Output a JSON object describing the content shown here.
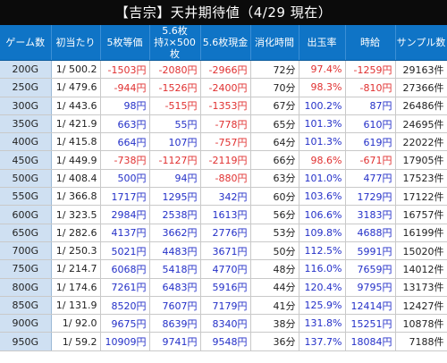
{
  "title": "【吉宗】天井期待値（4/29 現在）",
  "colors": {
    "header_bg": "#0f74c6",
    "game_col_bg": "#cfe0f2",
    "negative": "#e03030",
    "positive": "#2430c8"
  },
  "headers": {
    "game": "ゲーム数",
    "hit": "初当たり",
    "coin5": "5枚等価",
    "coin56_l1": "5.6枚",
    "coin56_l2": "持ｽ×500枚",
    "cash56": "5.6枚現金",
    "time": "消化時間",
    "rate": "出玉率",
    "hourly": "時給",
    "sample": "サンプル数"
  },
  "rows": [
    {
      "game": "200G",
      "hit": "1/ 500.2",
      "coin5": "-1503円",
      "coin56": "-2080円",
      "cash56": "-2966円",
      "time": "72分",
      "rate": "97.4%",
      "hourly": "-1259円",
      "sample": "29163件"
    },
    {
      "game": "250G",
      "hit": "1/ 479.6",
      "coin5": "-944円",
      "coin56": "-1526円",
      "cash56": "-2400円",
      "time": "70分",
      "rate": "98.3%",
      "hourly": "-810円",
      "sample": "27366件"
    },
    {
      "game": "300G",
      "hit": "1/ 443.6",
      "coin5": "98円",
      "coin56": "-515円",
      "cash56": "-1353円",
      "time": "67分",
      "rate": "100.2%",
      "hourly": "87円",
      "sample": "26486件"
    },
    {
      "game": "350G",
      "hit": "1/ 421.9",
      "coin5": "663円",
      "coin56": "55円",
      "cash56": "-778円",
      "time": "65分",
      "rate": "101.3%",
      "hourly": "610円",
      "sample": "24695件"
    },
    {
      "game": "400G",
      "hit": "1/ 415.8",
      "coin5": "664円",
      "coin56": "107円",
      "cash56": "-757円",
      "time": "64分",
      "rate": "101.3%",
      "hourly": "619円",
      "sample": "22022件"
    },
    {
      "game": "450G",
      "hit": "1/ 449.9",
      "coin5": "-738円",
      "coin56": "-1127円",
      "cash56": "-2119円",
      "time": "66分",
      "rate": "98.6%",
      "hourly": "-671円",
      "sample": "17905件"
    },
    {
      "game": "500G",
      "hit": "1/ 408.4",
      "coin5": "500円",
      "coin56": "94円",
      "cash56": "-880円",
      "time": "63分",
      "rate": "101.0%",
      "hourly": "477円",
      "sample": "17523件"
    },
    {
      "game": "550G",
      "hit": "1/ 366.8",
      "coin5": "1717円",
      "coin56": "1295円",
      "cash56": "342円",
      "time": "60分",
      "rate": "103.6%",
      "hourly": "1729円",
      "sample": "17122件"
    },
    {
      "game": "600G",
      "hit": "1/ 323.5",
      "coin5": "2984円",
      "coin56": "2538円",
      "cash56": "1613円",
      "time": "56分",
      "rate": "106.6%",
      "hourly": "3183円",
      "sample": "16757件"
    },
    {
      "game": "650G",
      "hit": "1/ 282.6",
      "coin5": "4137円",
      "coin56": "3662円",
      "cash56": "2776円",
      "time": "53分",
      "rate": "109.8%",
      "hourly": "4688円",
      "sample": "16199件"
    },
    {
      "game": "700G",
      "hit": "1/ 250.3",
      "coin5": "5021円",
      "coin56": "4483円",
      "cash56": "3671円",
      "time": "50分",
      "rate": "112.5%",
      "hourly": "5991円",
      "sample": "15020件"
    },
    {
      "game": "750G",
      "hit": "1/ 214.7",
      "coin5": "6068円",
      "coin56": "5418円",
      "cash56": "4770円",
      "time": "48分",
      "rate": "116.0%",
      "hourly": "7659円",
      "sample": "14012件"
    },
    {
      "game": "800G",
      "hit": "1/ 174.6",
      "coin5": "7261円",
      "coin56": "6483円",
      "cash56": "5916円",
      "time": "44分",
      "rate": "120.4%",
      "hourly": "9795円",
      "sample": "13173件"
    },
    {
      "game": "850G",
      "hit": "1/ 131.9",
      "coin5": "8520円",
      "coin56": "7607円",
      "cash56": "7179円",
      "time": "41分",
      "rate": "125.9%",
      "hourly": "12414円",
      "sample": "12427件"
    },
    {
      "game": "900G",
      "hit": "1/ 92.0",
      "coin5": "9675円",
      "coin56": "8639円",
      "cash56": "8340円",
      "time": "38分",
      "rate": "131.8%",
      "hourly": "15251円",
      "sample": "10878件"
    },
    {
      "game": "950G",
      "hit": "1/ 59.2",
      "coin5": "10909円",
      "coin56": "9741円",
      "cash56": "9548円",
      "time": "36分",
      "rate": "137.7%",
      "hourly": "18084円",
      "sample": "7188件"
    }
  ]
}
